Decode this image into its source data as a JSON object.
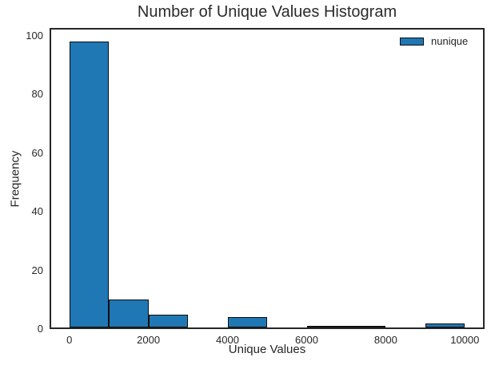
{
  "figure": {
    "background_color": "#ffffff",
    "text_color": "#262626",
    "spine_color": "#262626"
  },
  "chart_data": {
    "type": "bar",
    "chart_kind": "histogram",
    "title": "Number of Unique Values Histogram",
    "xlabel": "Unique Values",
    "ylabel": "Frequency",
    "bin_edges": [
      0,
      1000,
      2000,
      3000,
      4000,
      5000,
      6000,
      7000,
      8000,
      9000,
      10000
    ],
    "values": [
      98,
      10,
      5,
      0,
      4,
      0,
      1,
      1,
      0,
      2
    ],
    "xticks": [
      0,
      2000,
      4000,
      6000,
      8000,
      10000
    ],
    "yticks": [
      0,
      20,
      40,
      60,
      80,
      100
    ],
    "xlim": [
      -500,
      10500
    ],
    "ylim": [
      0,
      102.7
    ],
    "grid": false,
    "legend": {
      "label": "nunique",
      "position": "upper right",
      "frame": false
    },
    "bar_color": "#1f77b4",
    "bar_edge_color": "#0d0d0d"
  }
}
